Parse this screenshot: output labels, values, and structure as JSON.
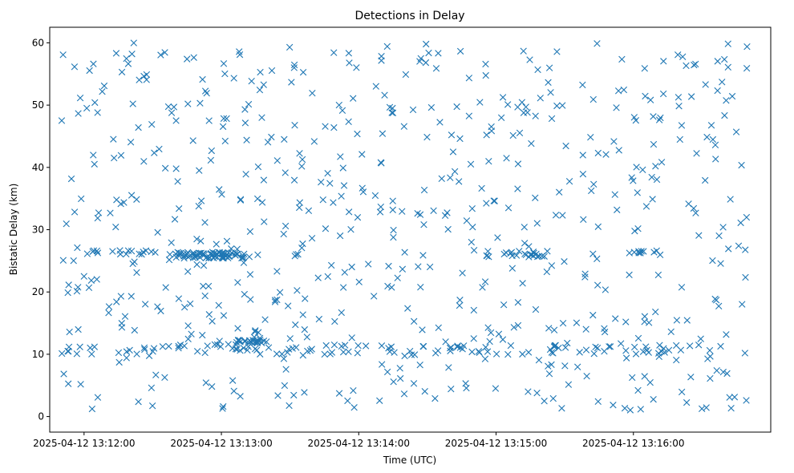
{
  "chart_data": {
    "type": "scatter",
    "title": "Detections in Delay",
    "xlabel": "Time (UTC)",
    "ylabel": "Bistatic Delay (km)",
    "xlim": [
      "2025-04-12 13:11:45",
      "2025-04-12 13:17:00"
    ],
    "ylim": [
      -2.5,
      62.5
    ],
    "x_ticks": [
      "2025-04-12 13:12:00",
      "2025-04-12 13:13:00",
      "2025-04-12 13:14:00",
      "2025-04-12 13:15:00",
      "2025-04-12 13:16:00"
    ],
    "y_ticks": [
      0,
      10,
      20,
      30,
      40,
      50,
      60
    ],
    "grid": false,
    "marker": "x",
    "color": "#1f77b4",
    "x_start": "2025-04-12 13:11:50",
    "x_end": "2025-04-12 13:16:50",
    "point_count": 900,
    "note": "Dense random scatter of ~900 detections; y spread uniformly 1–60 km; dense horizontal clusters near 26 km (13:12:40–13:13:10), 12 km (13:13:05–13:13:20) and along 10–11 km; more isolated points near 26 km around 13:15:00–13:15:20."
  }
}
